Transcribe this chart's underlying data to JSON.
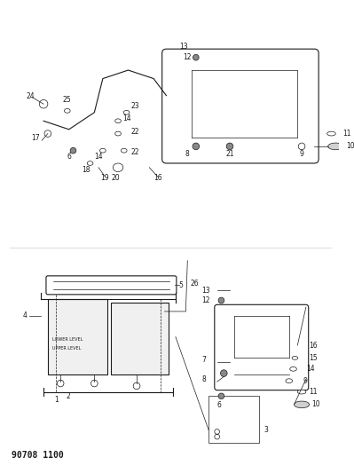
{
  "title": "90708 1100",
  "bg_color": "#ffffff",
  "fig_width": 3.99,
  "fig_height": 5.33,
  "dpi": 100,
  "line_color": "#1a1a1a",
  "text_color": "#1a1a1a",
  "title_fontsize": 7,
  "label_fontsize": 5.5
}
